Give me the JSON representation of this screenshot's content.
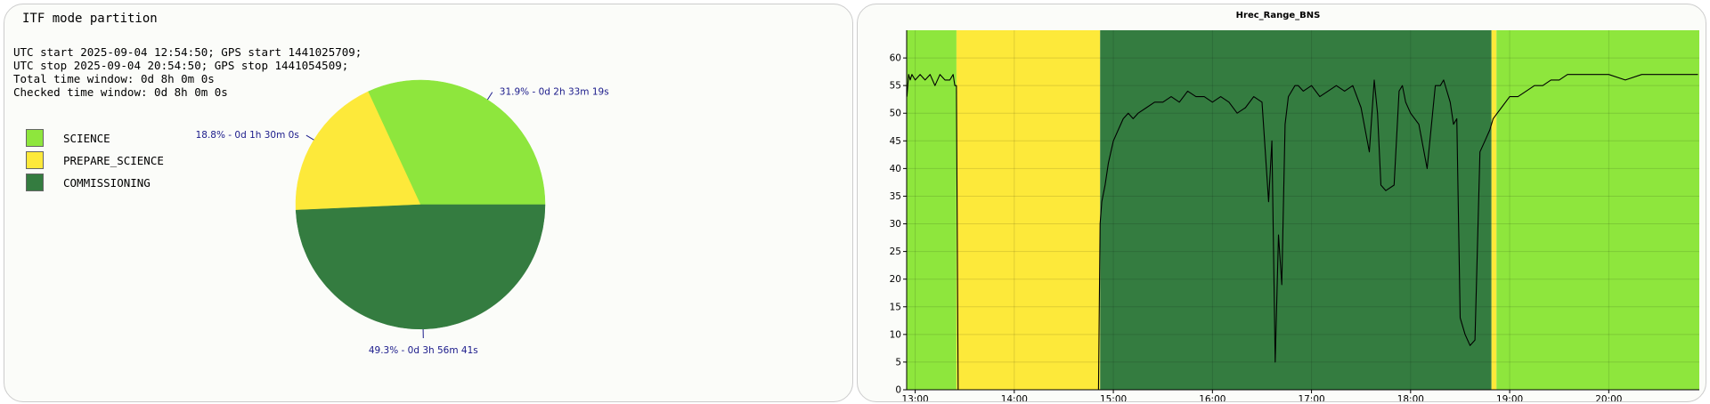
{
  "pie_panel": {
    "title": "ITF mode partition",
    "info_lines": [
      "UTC start 2025-09-04 12:54:50; GPS start 1441025709;",
      "UTC stop 2025-09-04 20:54:50; GPS stop 1441054509;",
      "Total time window: 0d 8h 0m 0s",
      "Checked time window: 0d 8h 0m 0s"
    ],
    "legend": [
      {
        "label": "SCIENCE",
        "color": "#8ee63d"
      },
      {
        "label": "PREPARE_SCIENCE",
        "color": "#fde93a"
      },
      {
        "label": "COMMISSIONING",
        "color": "#347c40"
      }
    ]
  },
  "chart_data": [
    {
      "type": "pie",
      "slices": [
        {
          "name": "SCIENCE",
          "value": 31.9,
          "color": "#8ee63d",
          "label": "31.9% - 0d 2h 33m 19s"
        },
        {
          "name": "PREPARE_SCIENCE",
          "value": 18.8,
          "color": "#fde93a",
          "label": "18.8% - 0d 1h 30m 0s"
        },
        {
          "name": "COMMISSIONING",
          "value": 49.3,
          "color": "#347c40",
          "label": "49.3% - 0d 3h 56m 41s"
        }
      ]
    },
    {
      "type": "line",
      "title": "Hrec_Range_BNS",
      "xlabel": "",
      "ylabel": "",
      "x_ticks": [
        "13:00",
        "14:00",
        "15:00",
        "16:00",
        "17:00",
        "18:00",
        "19:00",
        "20:00"
      ],
      "y_ticks": [
        0,
        5,
        10,
        15,
        20,
        25,
        30,
        35,
        40,
        45,
        50,
        55,
        60
      ],
      "xlim": [
        "12:54:50",
        "20:54:50"
      ],
      "ylim": [
        0,
        65
      ],
      "grid": true,
      "line_color": "#000000",
      "mode_bands": [
        {
          "mode": "SCIENCE",
          "start": "12:54:50",
          "end": "13:25:00",
          "color": "#8ee63d"
        },
        {
          "mode": "PREPARE_SCIENCE",
          "start": "13:25:00",
          "end": "14:52:00",
          "color": "#fde93a"
        },
        {
          "mode": "COMMISSIONING",
          "start": "14:52:00",
          "end": "18:49:00",
          "color": "#347c40"
        },
        {
          "mode": "PREPARE_SCIENCE",
          "start": "18:49:00",
          "end": "18:52:00",
          "color": "#fde93a"
        },
        {
          "mode": "SCIENCE",
          "start": "18:52:00",
          "end": "20:54:50",
          "color": "#8ee63d"
        }
      ],
      "series": [
        {
          "x": [
            "12:55",
            "12:56",
            "12:57",
            "12:58",
            "13:00",
            "13:03",
            "13:06",
            "13:09",
            "13:12",
            "13:15",
            "13:18",
            "13:21",
            "13:23",
            "13:24",
            "13:25",
            "13:26",
            "14:50",
            "14:51",
            "14:52",
            "14:53",
            "14:55",
            "14:57",
            "15:00",
            "15:03",
            "15:06",
            "15:09",
            "15:12",
            "15:15",
            "15:20",
            "15:25",
            "15:30",
            "15:35",
            "15:40",
            "15:45",
            "15:50",
            "15:55",
            "16:00",
            "16:05",
            "16:10",
            "16:15",
            "16:20",
            "16:25",
            "16:30",
            "16:32",
            "16:34",
            "16:36",
            "16:38",
            "16:40",
            "16:42",
            "16:44",
            "16:46",
            "16:48",
            "16:50",
            "16:52",
            "16:55",
            "17:00",
            "17:05",
            "17:10",
            "17:15",
            "17:20",
            "17:25",
            "17:30",
            "17:35",
            "17:38",
            "17:40",
            "17:42",
            "17:45",
            "17:50",
            "17:53",
            "17:55",
            "17:57",
            "18:00",
            "18:05",
            "18:10",
            "18:15",
            "18:18",
            "18:20",
            "18:22",
            "18:24",
            "18:26",
            "18:28",
            "18:30",
            "18:33",
            "18:36",
            "18:39",
            "18:42",
            "18:45",
            "18:48",
            "18:50",
            "18:55",
            "19:00",
            "19:05",
            "19:10",
            "19:15",
            "19:20",
            "19:25",
            "19:30",
            "19:35",
            "19:40",
            "19:50",
            "20:00",
            "20:10",
            "20:20",
            "20:30",
            "20:40",
            "20:50",
            "20:54"
          ],
          "y": [
            53,
            57,
            56,
            57,
            56,
            57,
            56,
            57,
            55,
            57,
            56,
            56,
            57,
            55,
            55,
            0,
            0,
            0,
            30,
            34,
            37,
            41,
            45,
            47,
            49,
            50,
            49,
            50,
            51,
            52,
            52,
            53,
            52,
            54,
            53,
            53,
            52,
            53,
            52,
            50,
            51,
            53,
            52,
            43,
            34,
            45,
            5,
            28,
            19,
            48,
            53,
            54,
            55,
            55,
            54,
            55,
            53,
            54,
            55,
            54,
            55,
            51,
            43,
            56,
            50,
            37,
            36,
            37,
            54,
            55,
            52,
            50,
            48,
            40,
            55,
            55,
            56,
            54,
            52,
            48,
            49,
            13,
            10,
            8,
            9,
            43,
            45,
            47,
            49,
            51,
            53,
            53,
            54,
            55,
            55,
            56,
            56,
            57,
            57,
            57,
            57,
            56,
            57,
            57,
            57,
            57,
            57
          ]
        }
      ]
    }
  ]
}
